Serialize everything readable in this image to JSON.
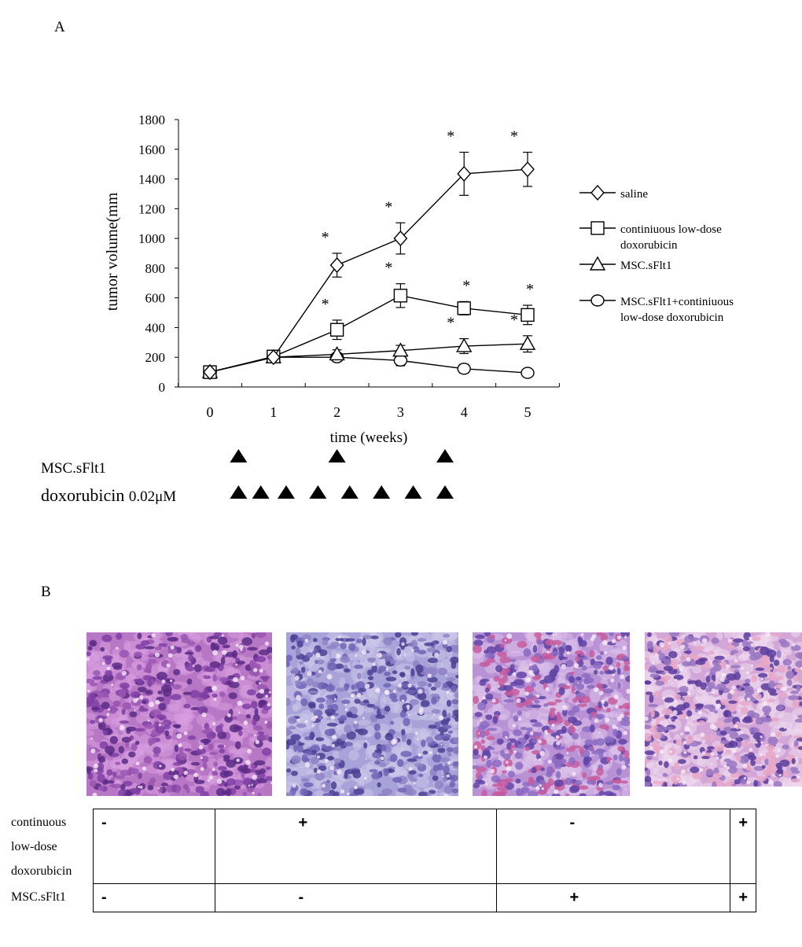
{
  "panel_a_label": "A",
  "panel_b_label": "B",
  "chart_data": {
    "type": "line",
    "ylabel": "tumor volume(mm",
    "xlabel": "time (weeks)",
    "x": [
      0,
      1,
      2,
      3,
      4,
      5
    ],
    "xlim": [
      0,
      5
    ],
    "ylim": [
      0,
      1800
    ],
    "yticks": [
      0,
      200,
      400,
      600,
      800,
      1000,
      1200,
      1400,
      1600,
      1800
    ],
    "legend_position": "right",
    "grid": false,
    "series": [
      {
        "name": "saline",
        "marker": "diamond",
        "values": [
          100,
          200,
          820,
          1000,
          1435,
          1465
        ],
        "errors": [
          0,
          0,
          80,
          105,
          145,
          115
        ],
        "significance": [
          "",
          "",
          "*",
          "*",
          "*",
          "*"
        ]
      },
      {
        "name": "continiuous low-dose doxorubicin",
        "name_lines": [
          "continiuous low-dose",
          "doxorubicin"
        ],
        "marker": "square",
        "values": [
          100,
          205,
          385,
          615,
          530,
          485
        ],
        "errors": [
          0,
          0,
          65,
          80,
          45,
          65
        ],
        "significance": [
          "",
          "",
          "*",
          "*",
          "*",
          "*"
        ]
      },
      {
        "name": "MSC.sFlt1",
        "marker": "triangle",
        "values": [
          100,
          200,
          220,
          245,
          275,
          290
        ],
        "errors": [
          0,
          0,
          30,
          35,
          50,
          55
        ],
        "significance": [
          "",
          "",
          "",
          "",
          "*",
          "*"
        ]
      },
      {
        "name": "MSC.sFlt1+continiuous low-dose doxorubicin",
        "name_lines": [
          "MSC.sFlt1+continiuous",
          "low-dose doxorubicin"
        ],
        "marker": "circle",
        "values": [
          100,
          200,
          200,
          178,
          123,
          95
        ],
        "errors": [
          0,
          0,
          25,
          35,
          30,
          20
        ],
        "significance": [
          "",
          "",
          "",
          "",
          "",
          ""
        ]
      }
    ]
  },
  "schedule": {
    "msc_label": "MSC.sFlt1",
    "msc_doses_weeks": [
      0.45,
      2.0,
      3.7
    ],
    "dox_label": "doxorubicin",
    "dox_conc": "0.02μM",
    "dox_doses_weeks": [
      0.45,
      0.8,
      1.2,
      1.7,
      2.2,
      2.7,
      3.2,
      3.7
    ]
  },
  "photos": [
    {
      "palette": [
        "#b877c4",
        "#7f40a4",
        "#9a56b2",
        "#d79ee0",
        "#5a2b86"
      ]
    },
    {
      "palette": [
        "#a7a3d8",
        "#6e63b6",
        "#8f83c6",
        "#cbc7ea",
        "#4b3f93"
      ]
    },
    {
      "palette": [
        "#b991d5",
        "#5f43a6",
        "#8a6bc2",
        "#dcc3ea",
        "#c75c9d"
      ]
    },
    {
      "palette": [
        "#d2a7d8",
        "#5a3c9d",
        "#9876c2",
        "#efd9ee",
        "#e8a8c8"
      ]
    }
  ],
  "table": {
    "row1_label_lines": [
      "continuous",
      "low-dose",
      "doxorubicin"
    ],
    "row2_label": "MSC.sFlt1",
    "row1": [
      "-",
      "+",
      "-",
      "+"
    ],
    "row2": [
      "-",
      "-",
      "+",
      "+"
    ]
  }
}
